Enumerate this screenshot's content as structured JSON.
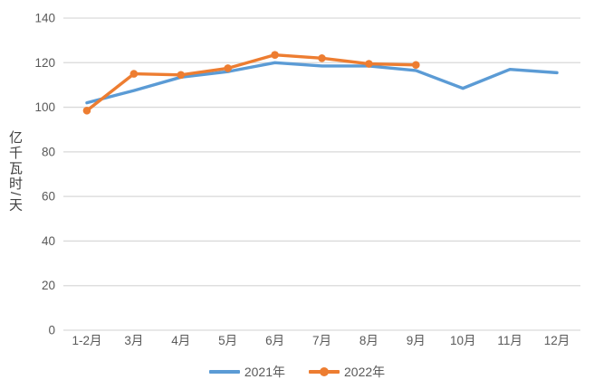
{
  "chart": {
    "y_axis_title": "亿千瓦时/天",
    "colors": {
      "series_2021": "#5B9BD5",
      "series_2022": "#ED7D31",
      "gridline": "#D9D9D9",
      "tick_text": "#595959",
      "background": "#FFFFFF"
    }
  },
  "chart_data": {
    "type": "line",
    "title": "",
    "xlabel": "",
    "ylabel": "亿千瓦时/天",
    "categories": [
      "1-2月",
      "3月",
      "4月",
      "5月",
      "6月",
      "7月",
      "8月",
      "9月",
      "10月",
      "11月",
      "12月"
    ],
    "series": [
      {
        "name": "2021年",
        "color": "#5B9BD5",
        "marker": false,
        "values": [
          102,
          107.5,
          113.5,
          116,
          120,
          118.5,
          118.5,
          116.5,
          108.5,
          117,
          115.5
        ]
      },
      {
        "name": "2022年",
        "color": "#ED7D31",
        "marker": true,
        "values": [
          98.5,
          115,
          114.5,
          117.5,
          123.5,
          122,
          119.5,
          119
        ]
      }
    ],
    "ylim": [
      0,
      140
    ],
    "ytick_step": 20,
    "ytick_labels": [
      "0",
      "20",
      "40",
      "60",
      "80",
      "100",
      "120",
      "140"
    ],
    "grid": true,
    "legend_position": "bottom"
  }
}
